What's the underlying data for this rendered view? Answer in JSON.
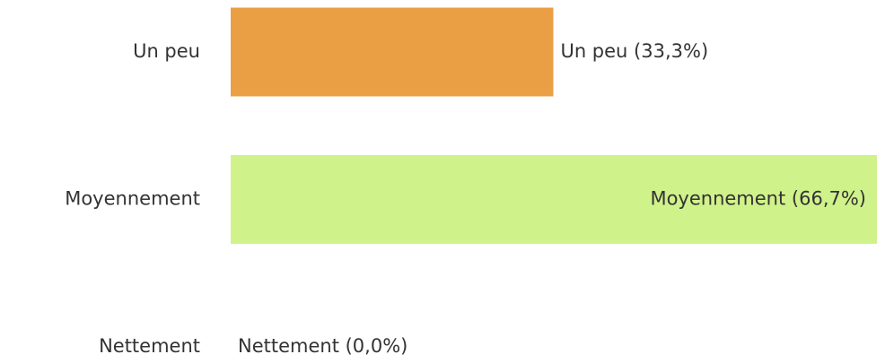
{
  "chart_data": {
    "type": "bar",
    "orientation": "horizontal",
    "categories": [
      "Un peu",
      "Moyennement",
      "Nettement"
    ],
    "values": [
      33.3,
      66.7,
      0.0
    ],
    "value_labels": [
      "Un peu (33,3%)",
      "Moyennement (66,7%)",
      "Nettement (0,0%)"
    ],
    "colors": [
      "#eb9f44",
      "#d0f28a",
      "#9ccc65"
    ],
    "xlim": [
      0,
      66.7
    ]
  }
}
